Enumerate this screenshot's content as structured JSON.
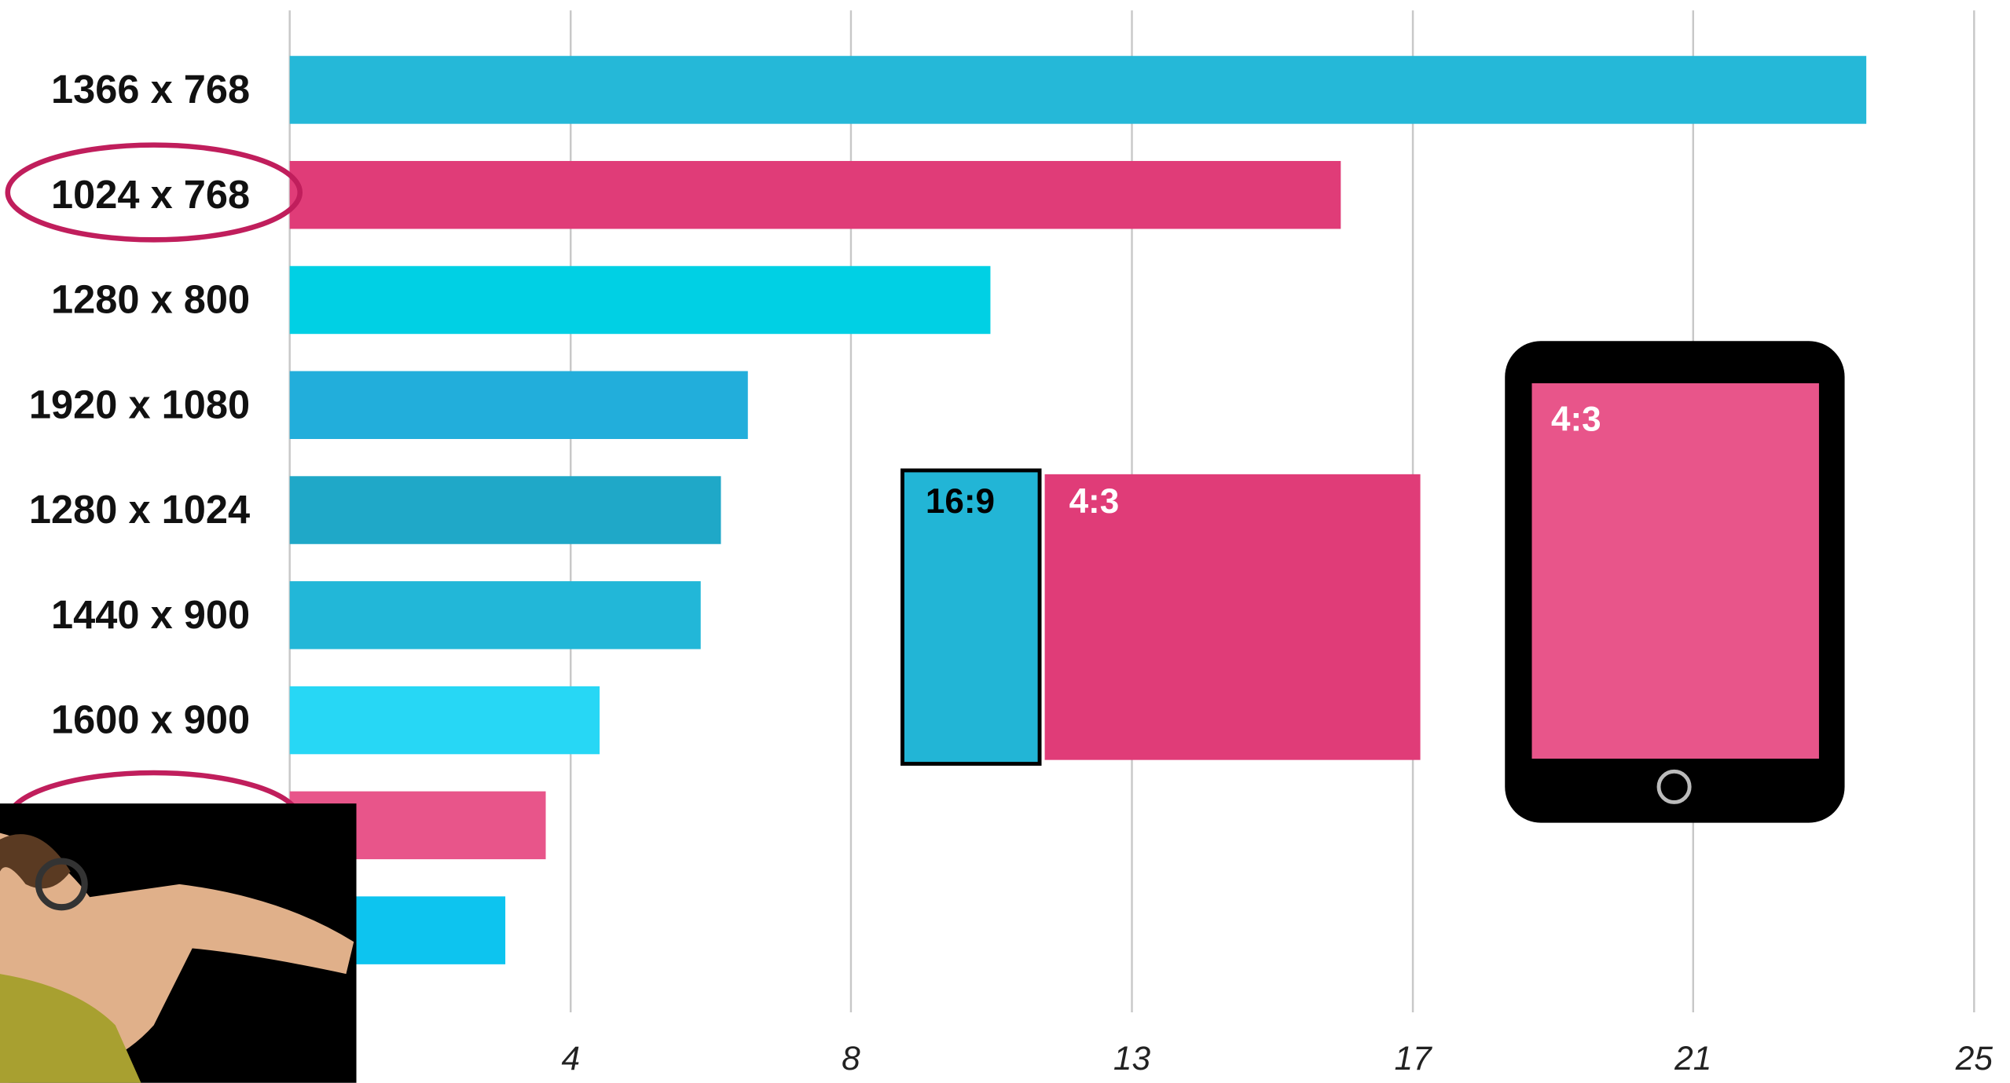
{
  "chart_data": {
    "type": "bar",
    "orientation": "horizontal",
    "categories": [
      "1366 x 768",
      "1024 x 768",
      "1280 x 800",
      "1920 x 1080",
      "1280 x 1024",
      "1440 x 900",
      "1600 x 900",
      null,
      null
    ],
    "values": [
      23.4,
      15.6,
      10.4,
      6.8,
      6.4,
      6.1,
      4.6,
      3.8,
      3.2
    ],
    "colors": [
      "#25b8d8",
      "#e03c78",
      "#00d0e4",
      "#22aedb",
      "#1fa8c8",
      "#22b7d8",
      "#27d7f5",
      "#e8558a",
      "#0dc4ef"
    ],
    "xlim": [
      0,
      25
    ],
    "xticks": [
      {
        "value": 4.17,
        "label": "4"
      },
      {
        "value": 8.33,
        "label": "8"
      },
      {
        "value": 12.5,
        "label": "13"
      },
      {
        "value": 16.67,
        "label": "17"
      },
      {
        "value": 20.83,
        "label": "21"
      },
      25
    ],
    "grid": true,
    "annotations": [
      "16:9",
      "4:3",
      "4:3"
    ]
  }
}
